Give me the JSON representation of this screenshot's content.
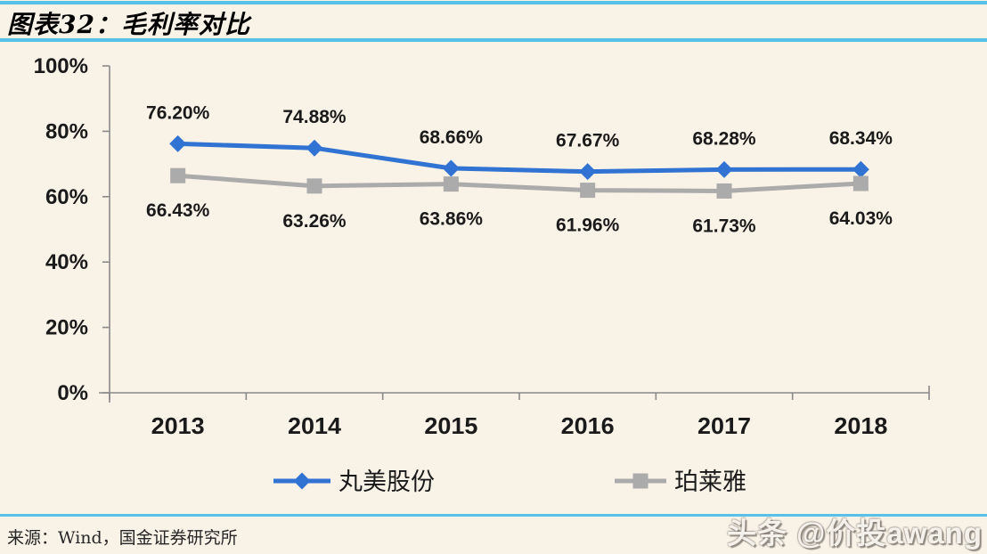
{
  "header": {
    "title": "图表32：毛利率对比"
  },
  "chart_data": {
    "type": "line",
    "title": "毛利率对比",
    "categories": [
      "2013",
      "2014",
      "2015",
      "2016",
      "2017",
      "2018"
    ],
    "series": [
      {
        "name": "丸美股份",
        "color": "#3173D2",
        "marker": "diamond",
        "label_position": "above",
        "values": [
          76.2,
          74.88,
          68.66,
          67.67,
          68.28,
          68.34
        ],
        "labels": [
          "76.20%",
          "74.88%",
          "68.66%",
          "67.67%",
          "68.28%",
          "68.34%"
        ]
      },
      {
        "name": "珀莱雅",
        "color": "#ABABAB",
        "marker": "square",
        "label_position": "below",
        "values": [
          66.43,
          63.26,
          63.86,
          61.96,
          61.73,
          64.03
        ],
        "labels": [
          "66.43%",
          "63.26%",
          "63.86%",
          "61.96%",
          "61.73%",
          "64.03%"
        ]
      }
    ],
    "xlabel": "",
    "ylabel": "",
    "ylim": [
      0,
      100
    ],
    "yticks": [
      "0%",
      "20%",
      "40%",
      "60%",
      "80%",
      "100%"
    ],
    "grid": false,
    "legend_position": "bottom"
  },
  "footer": {
    "source": "来源：Wind，国金证券研究所",
    "watermark": "头条 @价投awang"
  },
  "colors": {
    "background": "#F9F2E7",
    "divider": "#57C1E8",
    "axis": "#8A8A8A",
    "text": "#1A1A1A",
    "series1": "#3173D2",
    "series2": "#ABABAB"
  }
}
